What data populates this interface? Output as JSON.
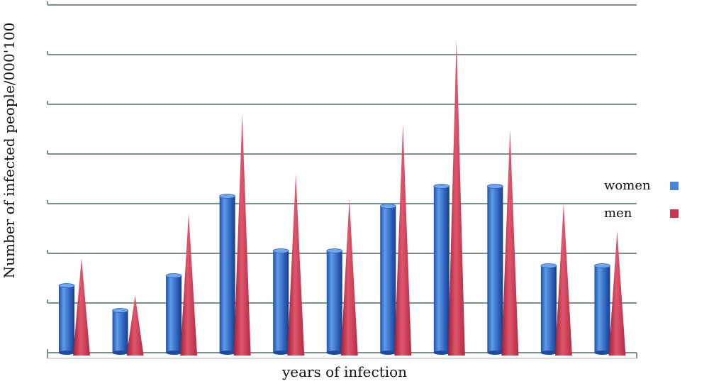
{
  "chart_data": {
    "type": "bar",
    "title": "",
    "xlabel": "years of infection",
    "ylabel": "Number of infected people/000'100",
    "ylim": [
      0,
      7
    ],
    "grid": true,
    "legend_placement": "right",
    "categories": [
      "",
      "",
      "",
      "",
      "",
      "",
      "",
      "",
      "",
      "",
      ""
    ],
    "series": [
      {
        "name": "women",
        "color": "#4a86d8",
        "shape": "cylinder",
        "values": [
          1.35,
          0.85,
          1.55,
          3.15,
          2.05,
          2.05,
          2.95,
          3.35,
          3.35,
          1.75,
          1.75
        ]
      },
      {
        "name": "men",
        "color": "#c8374f",
        "shape": "cone",
        "values": [
          1.9,
          1.15,
          2.8,
          4.8,
          3.6,
          3.1,
          4.6,
          6.3,
          4.5,
          3.0,
          2.45
        ]
      }
    ]
  }
}
